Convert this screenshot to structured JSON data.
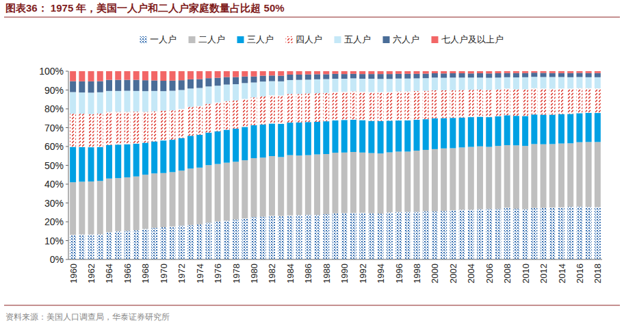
{
  "chart_data": {
    "type": "bar",
    "stacked": true,
    "grid": false,
    "legend": "top",
    "title": "图表36：  1975 年，美国一人户和二人户家庭数量占比超 50%",
    "source": "资料来源：美国人口调查局，华泰证券研究所",
    "categories": [
      "1960",
      null,
      "1962",
      null,
      "1964",
      null,
      "1966",
      null,
      "1968",
      null,
      "1970",
      null,
      "1972",
      null,
      "1974",
      null,
      "1976",
      null,
      "1978",
      null,
      "1980",
      null,
      "1982",
      null,
      "1984",
      null,
      "1986",
      null,
      "1988",
      null,
      "1990",
      null,
      "1992",
      null,
      "1994",
      null,
      "1996",
      null,
      "1998",
      null,
      "2000",
      null,
      "2002",
      null,
      "2004",
      null,
      "2006",
      null,
      "2008",
      null,
      "2010",
      null,
      "2012",
      null,
      "2014",
      null,
      "2016",
      null,
      "2018"
    ],
    "ylim": [
      0,
      100
    ],
    "yticks": [
      {
        "value": 0,
        "label": "0%"
      },
      {
        "value": 10,
        "label": "10%"
      },
      {
        "value": 20,
        "label": "20%"
      },
      {
        "value": 30,
        "label": "30%"
      },
      {
        "value": 40,
        "label": "40%"
      },
      {
        "value": 50,
        "label": "50%"
      },
      {
        "value": 60,
        "label": "60%"
      },
      {
        "value": 70,
        "label": "70%"
      },
      {
        "value": 80,
        "label": "80%"
      },
      {
        "value": 90,
        "label": "90%"
      },
      {
        "value": 100,
        "label": "100%"
      }
    ],
    "series": [
      {
        "name": "一人户",
        "color": "#1f5fa8",
        "values": [
          13.1,
          13.3,
          13.3,
          13.4,
          14.5,
          15.0,
          15.2,
          15.5,
          16.2,
          16.8,
          17.1,
          17.5,
          18.0,
          18.3,
          18.6,
          19.5,
          20.2,
          20.6,
          21.2,
          21.8,
          22.5,
          22.7,
          23.2,
          23.1,
          23.4,
          23.6,
          23.7,
          23.6,
          24.0,
          24.5,
          24.6,
          24.7,
          24.8,
          24.5,
          24.3,
          25.0,
          25.2,
          25.3,
          25.3,
          25.6,
          25.5,
          25.7,
          26.1,
          26.4,
          26.4,
          26.7,
          26.8,
          26.8,
          27.5,
          26.9,
          26.7,
          27.4,
          27.4,
          27.6,
          27.7,
          28.0,
          28.1,
          27.9,
          27.8
        ]
      },
      {
        "name": "二人户",
        "color": "#bfbfbf",
        "values": [
          27.9,
          28.0,
          28.1,
          28.3,
          28.5,
          28.2,
          28.4,
          28.6,
          28.8,
          28.9,
          28.8,
          28.9,
          29.2,
          30.0,
          30.2,
          30.6,
          30.5,
          30.8,
          30.7,
          30.9,
          31.3,
          31.4,
          31.7,
          31.3,
          32.0,
          31.6,
          31.7,
          32.2,
          32.0,
          32.2,
          32.2,
          32.4,
          32.0,
          32.0,
          32.0,
          31.9,
          32.1,
          32.0,
          32.5,
          32.6,
          33.1,
          33.3,
          33.0,
          33.1,
          33.4,
          33.4,
          33.0,
          33.5,
          33.2,
          33.7,
          33.6,
          33.9,
          33.8,
          33.7,
          33.9,
          33.7,
          34.2,
          34.5,
          34.6
        ]
      },
      {
        "name": "三人户",
        "color": "#00a0e3",
        "values": [
          18.8,
          18.4,
          18.2,
          18.0,
          17.8,
          17.8,
          17.6,
          17.4,
          17.0,
          17.0,
          17.3,
          17.2,
          17.3,
          17.4,
          17.4,
          17.3,
          17.4,
          17.5,
          17.6,
          17.7,
          17.5,
          17.6,
          17.3,
          17.6,
          17.3,
          17.6,
          17.6,
          17.3,
          17.4,
          17.2,
          17.3,
          17.1,
          17.2,
          17.1,
          17.2,
          16.8,
          16.5,
          16.6,
          16.4,
          16.3,
          16.4,
          16.1,
          16.1,
          15.9,
          15.8,
          15.7,
          15.8,
          15.7,
          15.9,
          15.7,
          15.9,
          15.7,
          15.7,
          15.6,
          15.6,
          15.6,
          15.4,
          15.5,
          15.4
        ]
      },
      {
        "name": "四人户",
        "color": "#d9261c",
        "values": [
          17.6,
          17.7,
          17.6,
          17.8,
          17.6,
          17.4,
          17.2,
          17.0,
          16.4,
          16.0,
          15.8,
          15.6,
          15.5,
          15.3,
          15.3,
          15.3,
          15.3,
          15.2,
          15.0,
          14.9,
          14.8,
          14.9,
          15.0,
          15.1,
          15.2,
          15.1,
          15.2,
          15.2,
          15.1,
          15.1,
          15.0,
          15.1,
          15.1,
          15.3,
          15.4,
          15.3,
          15.5,
          15.4,
          15.3,
          15.1,
          14.9,
          14.8,
          14.7,
          14.6,
          14.5,
          14.4,
          14.4,
          14.3,
          14.2,
          14.1,
          14.2,
          14.0,
          13.9,
          13.8,
          13.6,
          13.5,
          13.3,
          13.1,
          13.1
        ]
      },
      {
        "name": "五人户",
        "color": "#c5e8f7",
        "values": [
          11.5,
          11.3,
          11.4,
          11.3,
          11.1,
          11.1,
          11.2,
          11.0,
          11.0,
          10.8,
          10.4,
          10.4,
          10.0,
          9.8,
          9.6,
          9.2,
          8.9,
          8.8,
          8.6,
          8.4,
          7.9,
          7.9,
          7.5,
          7.5,
          7.4,
          7.5,
          7.3,
          7.4,
          7.3,
          7.0,
          6.9,
          6.9,
          6.9,
          7.1,
          7.0,
          6.9,
          6.8,
          6.8,
          6.7,
          6.7,
          6.7,
          6.6,
          6.7,
          6.6,
          6.5,
          6.4,
          6.5,
          6.3,
          6.0,
          6.3,
          6.4,
          6.0,
          6.1,
          6.2,
          6.1,
          6.0,
          5.9,
          5.8,
          5.9
        ]
      },
      {
        "name": "六人户",
        "color": "#4a6d98",
        "values": [
          5.8,
          5.9,
          6.0,
          5.9,
          5.9,
          5.9,
          5.8,
          5.9,
          5.8,
          5.6,
          5.5,
          5.4,
          5.2,
          4.9,
          4.7,
          4.4,
          4.2,
          4.0,
          3.8,
          3.5,
          3.2,
          3.1,
          3.0,
          3.0,
          2.9,
          2.8,
          2.8,
          2.7,
          2.6,
          2.6,
          2.5,
          2.4,
          2.5,
          2.5,
          2.6,
          2.6,
          2.5,
          2.5,
          2.4,
          2.4,
          2.3,
          2.3,
          2.3,
          2.3,
          2.2,
          2.3,
          2.3,
          2.3,
          2.2,
          2.3,
          2.2,
          2.2,
          2.2,
          2.1,
          2.1,
          2.2,
          2.2,
          2.2,
          2.2
        ]
      },
      {
        "name": "七人户及以上户",
        "color": "#f26666",
        "values": [
          5.3,
          5.4,
          5.4,
          5.3,
          4.6,
          4.6,
          4.6,
          4.6,
          4.8,
          4.9,
          5.1,
          5.0,
          4.8,
          4.3,
          4.2,
          3.7,
          3.5,
          3.1,
          3.1,
          2.8,
          2.8,
          2.4,
          2.3,
          2.4,
          1.8,
          1.8,
          1.7,
          1.6,
          1.6,
          1.4,
          1.5,
          1.4,
          1.5,
          1.5,
          1.5,
          1.5,
          1.4,
          1.4,
          1.4,
          1.3,
          1.1,
          1.2,
          1.1,
          1.1,
          1.2,
          1.1,
          1.2,
          1.1,
          1.0,
          1.0,
          1.0,
          0.8,
          0.9,
          1.0,
          1.0,
          1.0,
          0.9,
          1.0,
          1.0
        ]
      }
    ]
  }
}
